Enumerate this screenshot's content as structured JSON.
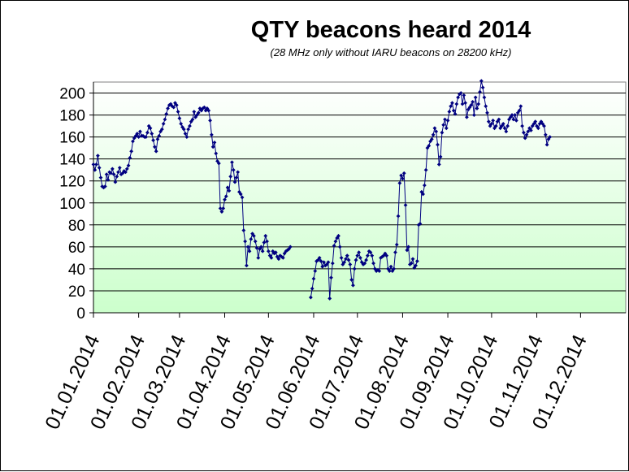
{
  "chart_data": {
    "type": "line",
    "title": "QTY beacons heard 2014",
    "subtitle": "(28 MHz only without IARU beacons on 28200 kHz)",
    "xlabel": "",
    "ylabel": "",
    "ylim": [
      0,
      210
    ],
    "yticks": [
      0,
      20,
      40,
      60,
      80,
      100,
      120,
      140,
      160,
      180,
      200
    ],
    "grid": true,
    "legend": "none",
    "x_tick_labels": [
      "01.01.2014",
      "01.02.2014",
      "01.03.2014",
      "01.04.2014",
      "01.05.2014",
      "01.06.2014",
      "01.07.2014",
      "01.08.2014",
      "01.09.2014",
      "01.10.2014",
      "01.11.2014",
      "01.12.2014"
    ],
    "x_tick_days": [
      1,
      32,
      60,
      91,
      121,
      152,
      182,
      213,
      244,
      274,
      305,
      335
    ],
    "xlim_days": [
      1,
      366
    ],
    "colors": {
      "line": "#000080",
      "marker": "#000080",
      "plot_top": "#ffffff",
      "plot_bottom": "#ccffcc",
      "grid": "#000000"
    },
    "series": [
      {
        "segments": [
          {
            "start_day": 1,
            "values": [
              135,
              130,
              135,
              143,
              132,
              123,
              115,
              114,
              115,
              126,
              121,
              128,
              127,
              131,
              126,
              119,
              124,
              128,
              132,
              126,
              127,
              129,
              128,
              131,
              134,
              141,
              147,
              156,
              159,
              161,
              163,
              160,
              165,
              161,
              161,
              160,
              160,
              164,
              170,
              168,
              163,
              157,
              151,
              147,
              158,
              161,
              165,
              167,
              172,
              176,
              181,
              186,
              189,
              190,
              188,
              187,
              191,
              189,
              183,
              177,
              172,
              169,
              167,
              163,
              160,
              167,
              170,
              174,
              176,
              183,
              178,
              180,
              182,
              186,
              184,
              186,
              187,
              184,
              186,
              184,
              175,
              162,
              151,
              155,
              145,
              138,
              136,
              95,
              92,
              95,
              103,
              106,
              114,
              111,
              124,
              137,
              130,
              119,
              123,
              128,
              110,
              108,
              105,
              75,
              65,
              43,
              60,
              56,
              67,
              72,
              70,
              65,
              59,
              50,
              58,
              60,
              56,
              64,
              70,
              65,
              56,
              52,
              50,
              56,
              54,
              55,
              51,
              49,
              52,
              51,
              50,
              54,
              56,
              57,
              58,
              60
            ]
          },
          {
            "start_day": 150,
            "values": [
              14,
              22,
              31,
              38,
              47,
              48,
              50,
              47,
              42,
              46,
              43,
              44,
              46,
              13,
              32,
              45,
              61,
              65,
              68,
              70,
              60,
              50,
              44,
              46,
              49,
              52,
              48,
              44,
              30,
              25,
              40,
              48,
              52,
              55,
              50,
              46,
              44,
              45,
              48,
              52,
              56,
              55,
              52,
              45,
              40,
              38,
              39,
              38,
              50,
              51,
              52,
              54,
              52,
              40,
              38,
              42,
              38,
              40,
              55,
              62,
              88,
              118,
              125,
              122,
              127,
              98,
              57,
              60,
              44,
              45,
              49,
              41,
              43,
              47,
              80,
              81,
              110,
              108,
              116,
              130,
              150,
              152,
              156,
              158,
              162,
              168,
              165,
              153,
              135,
              142,
              164,
              171,
              176,
              168,
              175,
              183,
              188,
              191,
              184,
              181,
              190,
              196,
              199,
              200,
              190,
              198,
              191,
              178,
              185,
              187,
              189,
              192,
              180,
              196,
              186,
              190,
              201,
              211,
              205,
              196,
              188,
              182,
              174,
              170,
              172,
              175,
              168,
              170,
              174,
              176,
              168,
              170,
              172,
              168,
              165,
              170,
              176,
              178,
              180,
              176,
              180,
              175,
              182,
              184,
              188,
              170,
              164,
              159,
              162,
              165,
              168,
              166,
              170,
              172,
              174,
              170,
              168,
              172,
              174,
              172,
              170,
              162,
              153,
              158,
              160
            ]
          }
        ]
      }
    ]
  }
}
